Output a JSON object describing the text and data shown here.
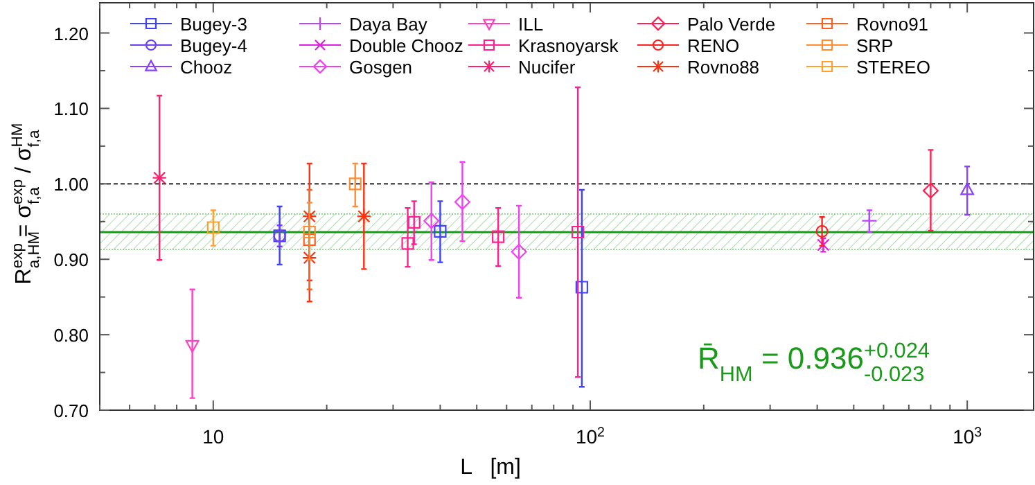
{
  "chart_data": {
    "type": "scatter",
    "xlabel": "L   [m]",
    "ylabel": "R$_{a,HM}$$^{exp}$ = σ$_{f,a}$$^{exp}$ / σ$_{f,a}$$^{HM}$",
    "log": "x",
    "legend": "top",
    "line_style": "solid",
    "xlim": [
      5,
      1500
    ],
    "xticks": [
      {
        "value": 5,
        "label": null
      },
      {
        "value": 6,
        "label": null
      },
      {
        "value": 7,
        "label": null
      },
      {
        "value": 8,
        "label": null
      },
      {
        "value": 9,
        "label": null
      },
      10,
      {
        "value": 20,
        "label": null
      },
      {
        "value": 30,
        "label": null
      },
      {
        "value": 40,
        "label": null
      },
      {
        "value": 50,
        "label": null
      },
      {
        "value": 60,
        "label": null
      },
      {
        "value": 70,
        "label": null
      },
      {
        "value": 80,
        "label": null
      },
      {
        "value": 90,
        "label": null
      },
      {
        "value": 100,
        "label": "10$^{2}$"
      },
      {
        "value": 200,
        "label": null
      },
      {
        "value": 300,
        "label": null
      },
      {
        "value": 400,
        "label": null
      },
      {
        "value": 500,
        "label": null
      },
      {
        "value": 600,
        "label": null
      },
      {
        "value": 700,
        "label": null
      },
      {
        "value": 800,
        "label": null
      },
      {
        "value": 900,
        "label": null
      },
      {
        "value": 1000,
        "label": "10$^{3}$"
      }
    ],
    "ylim": [
      0.7,
      1.24
    ],
    "yticks": [
      {
        "value": 0.7,
        "label": "0.70"
      },
      {
        "value": 0.75,
        "label": null
      },
      {
        "value": 0.8,
        "label": "0.80"
      },
      {
        "value": 0.85,
        "label": null
      },
      {
        "value": 0.9,
        "label": "0.90"
      },
      {
        "value": 0.95,
        "label": null
      },
      {
        "value": 1.0,
        "label": "1.00"
      },
      {
        "value": 1.05,
        "label": null
      },
      {
        "value": 1.1,
        "label": "1.10"
      },
      {
        "value": 1.15,
        "label": null
      },
      {
        "value": 1.2,
        "label": "1.20"
      }
    ],
    "ref_lines": [
      {
        "axis": "y",
        "value": 1.0,
        "color": "#000000",
        "line_style": "dashed"
      },
      {
        "axis": "y",
        "value": 0.936,
        "color": "#1a9a1a",
        "line_style": "solid"
      }
    ],
    "bands": [
      {
        "axis": "y",
        "from": 0.913,
        "to": 0.96,
        "color": "#1a9a1a"
      }
    ],
    "annotations": [
      "R̄$_{HM}$ = 0.936$^{+0.024}$$_{-0.023}$"
    ],
    "series": [
      {
        "name": "Bugey-3",
        "color": "#4040ff",
        "marker": "square",
        "x": [
          15,
          40,
          95
        ],
        "values": [
          0.931,
          0.937,
          0.863
        ],
        "errors": [
          [
            0.893,
            0.97
          ],
          [
            0.896,
            0.977
          ],
          [
            0.731,
            0.992
          ]
        ]
      },
      {
        "name": "Bugey-4",
        "color": "#6a40f0",
        "marker": "circle",
        "x": [
          15
        ],
        "values": [
          0.931
        ],
        "errors": [
          [
            0.917,
            0.945
          ]
        ]
      },
      {
        "name": "Chooz",
        "color": "#8a40ff",
        "marker": "triangle",
        "x": [
          1000
        ],
        "values": [
          0.992
        ],
        "errors": [
          [
            0.959,
            1.023
          ]
        ]
      },
      {
        "name": "Daya Bay",
        "color": "#c040ff",
        "marker": "cross",
        "x": [
          550
        ],
        "values": [
          0.951
        ],
        "errors": [
          [
            0.936,
            0.965
          ]
        ]
      },
      {
        "name": "Double Chooz",
        "color": "#e020e0",
        "marker": "x",
        "x": [
          415
        ],
        "values": [
          0.919
        ],
        "errors": [
          [
            0.91,
            0.928
          ]
        ]
      },
      {
        "name": "Gosgen",
        "color": "#f040f0",
        "marker": "diamond",
        "x": [
          37.9,
          45.8,
          64.7
        ],
        "values": [
          0.951,
          0.976,
          0.91
        ],
        "errors": [
          [
            0.899,
            1.002
          ],
          [
            0.924,
            1.029
          ],
          [
            0.849,
            0.971
          ]
        ]
      },
      {
        "name": "ILL",
        "color": "#ff40c0",
        "marker": "triangle-down",
        "x": [
          8.8
        ],
        "values": [
          0.786
        ],
        "errors": [
          [
            0.716,
            0.86
          ]
        ]
      },
      {
        "name": "Krasnoyarsk",
        "color": "#ff2090",
        "marker": "square",
        "x": [
          32.8,
          34.1,
          57,
          92.7
        ],
        "values": [
          0.921,
          0.949,
          0.93,
          0.936
        ],
        "errors": [
          [
            0.89,
            0.968
          ],
          [
            0.92,
            0.977
          ],
          [
            0.891,
            0.968
          ],
          [
            0.744,
            1.128
          ]
        ]
      },
      {
        "name": "Nucifer",
        "color": "#ff2070",
        "x": [
          7.2
        ],
        "values": [
          1.008
        ],
        "errors": [
          [
            0.899,
            1.117
          ]
        ]
      },
      {
        "name": "Palo Verde",
        "color": "#ff2050",
        "marker": "diamond",
        "x": [
          800
        ],
        "values": [
          0.991
        ],
        "errors": [
          [
            0.938,
            1.045
          ]
        ]
      },
      {
        "name": "RENO",
        "color": "#ff2020",
        "marker": "circle",
        "x": [
          412
        ],
        "values": [
          0.937
        ],
        "errors": [
          [
            0.918,
            0.956
          ]
        ]
      },
      {
        "name": "Rovno88",
        "color": "#ff3010",
        "x": [
          18,
          18,
          25.1
        ],
        "values": [
          0.957,
          0.902,
          0.957
        ],
        "errors": [
          [
            0.872,
            1.027
          ],
          [
            0.844,
            0.96
          ],
          [
            0.887,
            1.027
          ]
        ]
      },
      {
        "name": "Rovno91",
        "color": "#ff6020",
        "marker": "square",
        "x": [
          18
        ],
        "values": [
          0.926
        ],
        "errors": [
          [
            0.86,
            0.992
          ]
        ]
      },
      {
        "name": "SRP",
        "color": "#ff8c30",
        "marker": "square",
        "x": [
          18,
          23.8
        ],
        "values": [
          0.936,
          1.0
        ],
        "errors": [
          [
            0.9,
            0.975
          ],
          [
            0.97,
            1.027
          ]
        ]
      },
      {
        "name": "STEREO",
        "color": "#ffa030",
        "marker": "square",
        "x": [
          10
        ],
        "values": [
          0.942
        ],
        "errors": [
          [
            0.918,
            0.965
          ]
        ]
      }
    ]
  }
}
